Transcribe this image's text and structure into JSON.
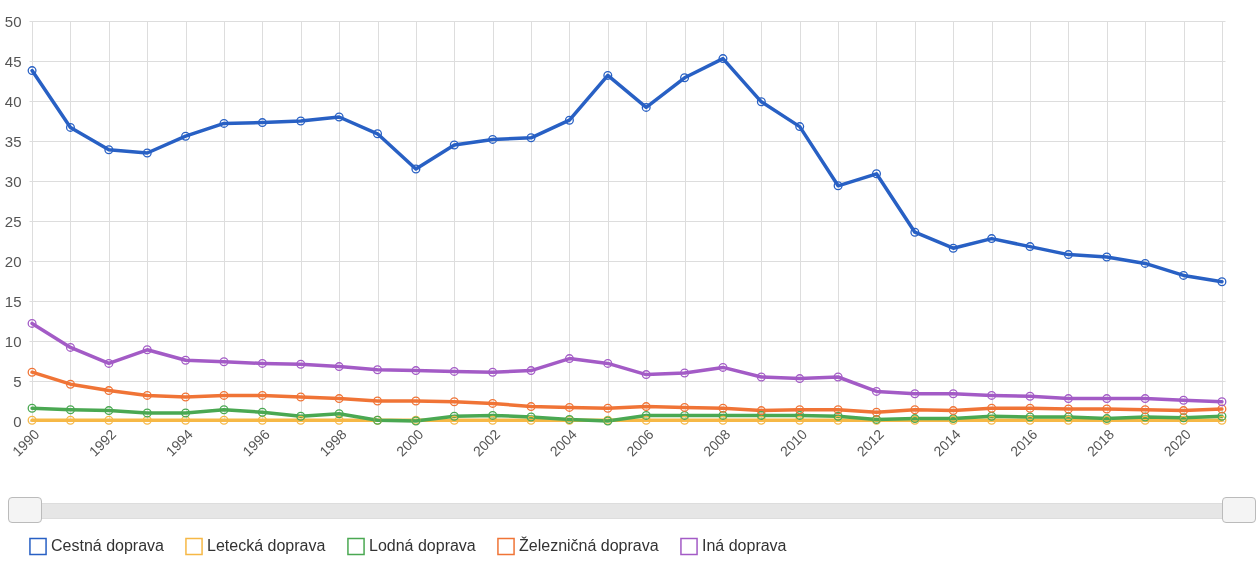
{
  "chart_data": {
    "type": "line",
    "categories": [
      "1990",
      null,
      "1992",
      null,
      "1994",
      null,
      "1996",
      null,
      "1998",
      null,
      "2000",
      null,
      "2002",
      null,
      "2004",
      null,
      "2006",
      null,
      "2008",
      null,
      "2010",
      null,
      "2012",
      null,
      "2014",
      null,
      "2016",
      null,
      "2018",
      null,
      "2020",
      null
    ],
    "series": [
      {
        "name": "Cestná doprava",
        "color": "#2860c4",
        "values": [
          43.8,
          36.7,
          33.9,
          33.5,
          35.6,
          37.2,
          37.3,
          37.5,
          38.0,
          35.9,
          31.5,
          34.5,
          35.2,
          35.4,
          37.6,
          43.2,
          39.2,
          42.9,
          45.3,
          39.9,
          36.8,
          29.4,
          30.9,
          23.6,
          21.6,
          22.8,
          21.8,
          20.8,
          20.5,
          19.7,
          18.2,
          17.4
        ]
      },
      {
        "name": "Letecká doprava",
        "color": "#f6b846",
        "values": [
          0.1,
          0.1,
          0.1,
          0.1,
          0.1,
          0.1,
          0.1,
          0.1,
          0.1,
          0.1,
          0.1,
          0.1,
          0.1,
          0.1,
          0.1,
          0.1,
          0.1,
          0.1,
          0.1,
          0.1,
          0.1,
          0.1,
          0.1,
          0.1,
          0.1,
          0.1,
          0.1,
          0.1,
          0.1,
          0.1,
          0.1,
          0.1
        ]
      },
      {
        "name": "Lodná doprava",
        "color": "#4aa852",
        "values": [
          1.6,
          1.4,
          1.3,
          1.0,
          1.0,
          1.4,
          1.1,
          0.6,
          0.9,
          0.1,
          0.0,
          0.6,
          0.7,
          0.5,
          0.2,
          0.0,
          0.7,
          0.7,
          0.7,
          0.7,
          0.7,
          0.6,
          0.2,
          0.3,
          0.3,
          0.6,
          0.5,
          0.5,
          0.3,
          0.5,
          0.4,
          0.6
        ]
      },
      {
        "name": "Železničná doprava",
        "color": "#f07436",
        "values": [
          6.1,
          4.6,
          3.8,
          3.2,
          3.0,
          3.2,
          3.2,
          3.0,
          2.8,
          2.5,
          2.5,
          2.4,
          2.2,
          1.8,
          1.7,
          1.6,
          1.8,
          1.7,
          1.6,
          1.3,
          1.4,
          1.4,
          1.1,
          1.4,
          1.3,
          1.6,
          1.6,
          1.5,
          1.5,
          1.4,
          1.3,
          1.5
        ]
      },
      {
        "name": "Iná doprava",
        "color": "#a35bc6",
        "values": [
          12.2,
          9.2,
          7.2,
          8.9,
          7.6,
          7.4,
          7.2,
          7.1,
          6.8,
          6.4,
          6.3,
          6.2,
          6.1,
          6.3,
          7.8,
          7.2,
          5.8,
          6.0,
          6.7,
          5.5,
          5.3,
          5.5,
          3.7,
          3.4,
          3.4,
          3.2,
          3.1,
          2.8,
          2.8,
          2.8,
          2.6,
          2.4
        ]
      }
    ],
    "ylim": [
      0,
      50
    ],
    "yticks": [
      0,
      5,
      10,
      15,
      20,
      25,
      30,
      35,
      40,
      45,
      50
    ],
    "grid": true,
    "legend": "bottom",
    "marker": "circle"
  }
}
